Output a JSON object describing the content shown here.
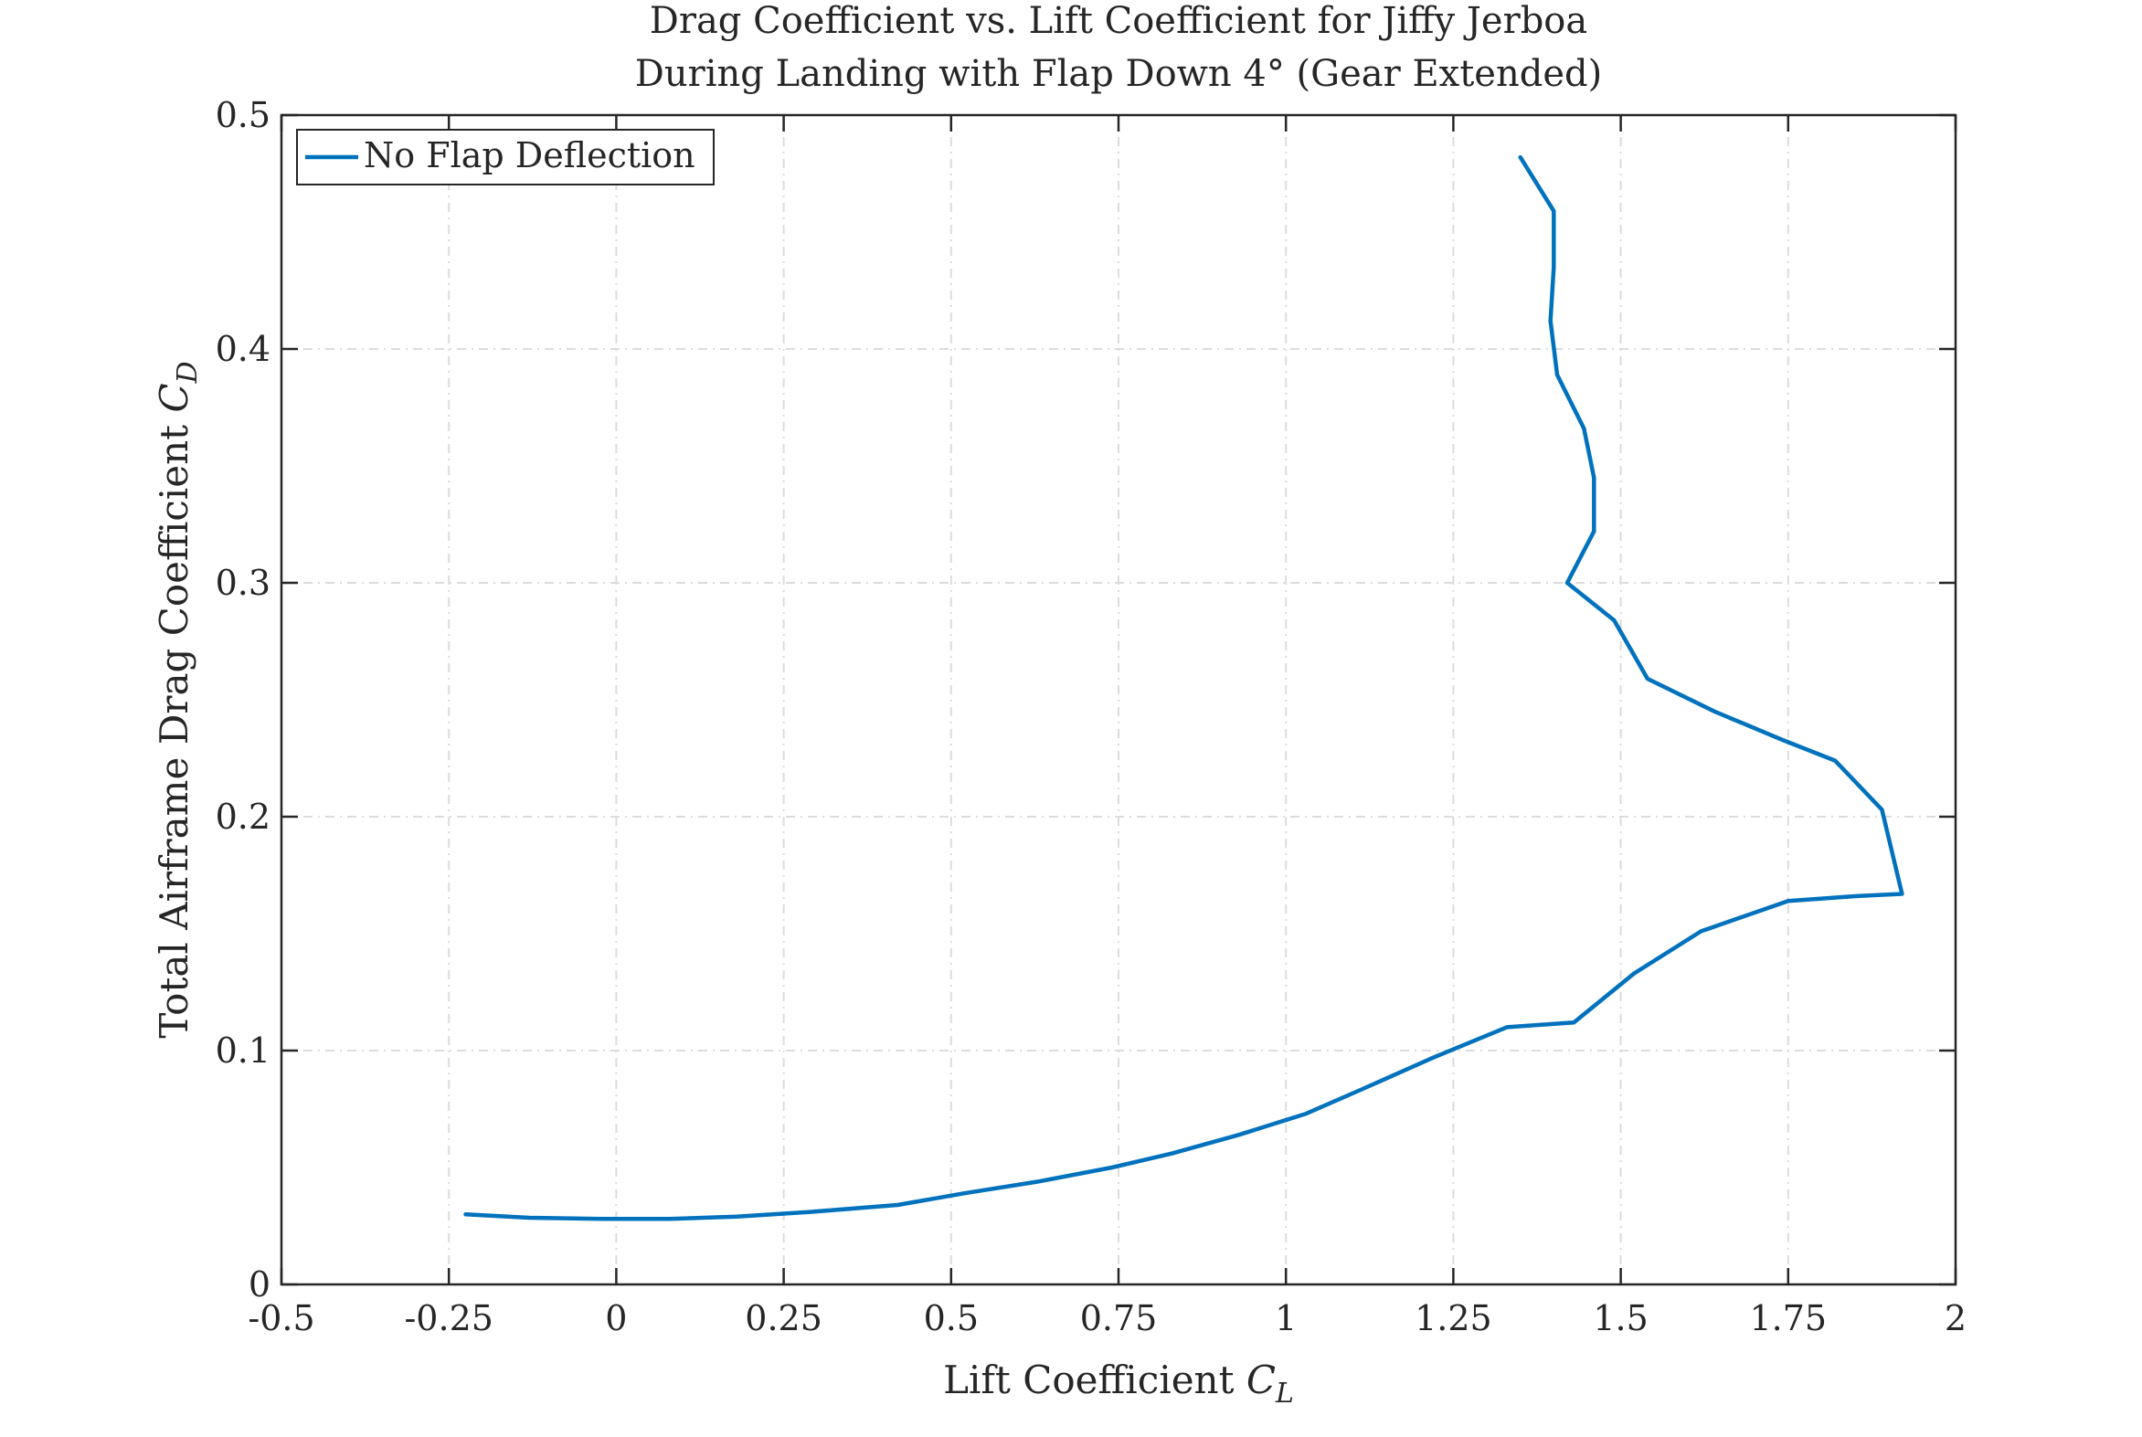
{
  "chart_data": {
    "type": "line",
    "title_line1": "Drag Coefficient vs. Lift Coefficient for Jiffy Jerboa",
    "title_line2": "During Landing with Flap Down 4° (Gear Extended)",
    "xlabel_main": "Lift Coefficient ",
    "xlabel_var": "C",
    "xlabel_sub": "L",
    "ylabel_main": "Total Airframe Drag Coefficient ",
    "ylabel_var": "C",
    "ylabel_sub": "D",
    "xlim": [
      -0.5,
      2
    ],
    "ylim": [
      0,
      0.5
    ],
    "x_ticks": [
      -0.5,
      -0.25,
      0,
      0.25,
      0.5,
      0.75,
      1,
      1.25,
      1.5,
      1.75,
      2
    ],
    "x_tick_labels": [
      "-0.5",
      "-0.25",
      "0",
      "0.25",
      "0.5",
      "0.75",
      "1",
      "1.25",
      "1.5",
      "1.75",
      "2"
    ],
    "y_ticks": [
      0,
      0.1,
      0.2,
      0.3,
      0.4,
      0.5
    ],
    "y_tick_labels": [
      "0",
      "0.1",
      "0.2",
      "0.3",
      "0.4",
      "0.5"
    ],
    "grid": true,
    "legend_position": "top-left",
    "series": [
      {
        "name": "No Flap Deflection",
        "color": "#0072BD",
        "points": [
          [
            -0.225,
            0.03
          ],
          [
            -0.13,
            0.0285
          ],
          [
            -0.02,
            0.028
          ],
          [
            0.08,
            0.028
          ],
          [
            0.18,
            0.029
          ],
          [
            0.29,
            0.031
          ],
          [
            0.42,
            0.034
          ],
          [
            0.52,
            0.039
          ],
          [
            0.63,
            0.044
          ],
          [
            0.74,
            0.05
          ],
          [
            0.83,
            0.056
          ],
          [
            0.93,
            0.064
          ],
          [
            1.03,
            0.073
          ],
          [
            1.11,
            0.083
          ],
          [
            1.22,
            0.097
          ],
          [
            1.33,
            0.11
          ],
          [
            1.43,
            0.112
          ],
          [
            1.52,
            0.133
          ],
          [
            1.62,
            0.151
          ],
          [
            1.75,
            0.164
          ],
          [
            1.85,
            0.166
          ],
          [
            1.92,
            0.167
          ],
          [
            1.89,
            0.203
          ],
          [
            1.82,
            0.224
          ],
          [
            1.74,
            0.233
          ],
          [
            1.64,
            0.245
          ],
          [
            1.54,
            0.259
          ],
          [
            1.49,
            0.284
          ],
          [
            1.42,
            0.3
          ],
          [
            1.46,
            0.322
          ],
          [
            1.46,
            0.345
          ],
          [
            1.445,
            0.366
          ],
          [
            1.405,
            0.389
          ],
          [
            1.395,
            0.412
          ],
          [
            1.4,
            0.435
          ],
          [
            1.4,
            0.459
          ],
          [
            1.35,
            0.482
          ]
        ]
      }
    ]
  }
}
